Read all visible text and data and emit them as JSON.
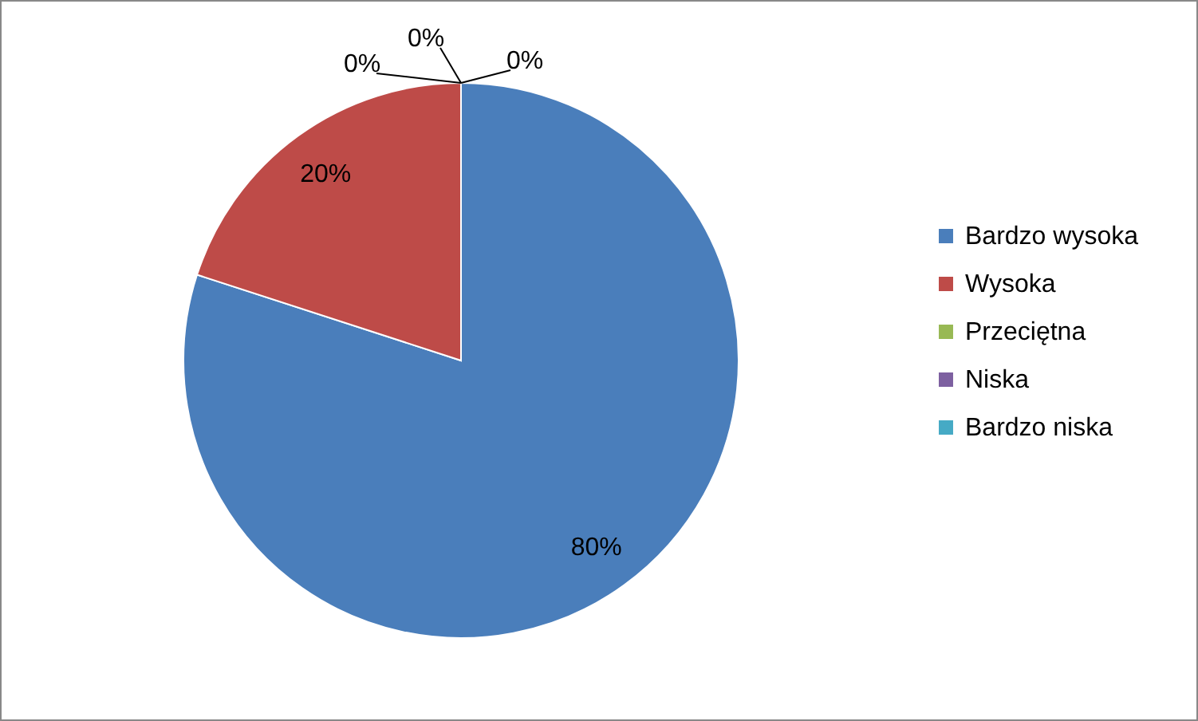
{
  "chart_data": {
    "type": "pie",
    "categories": [
      "Bardzo wysoka",
      "Wysoka",
      "Przeciętna",
      "Niska",
      "Bardzo niska"
    ],
    "values": [
      80,
      20,
      0,
      0,
      0
    ],
    "colors": [
      "#4a7ebb",
      "#be4b48",
      "#98b954",
      "#7d60a0",
      "#46aac5"
    ],
    "value_labels": [
      "80%",
      "20%",
      "0%",
      "0%",
      "0%"
    ],
    "legend": "right"
  }
}
